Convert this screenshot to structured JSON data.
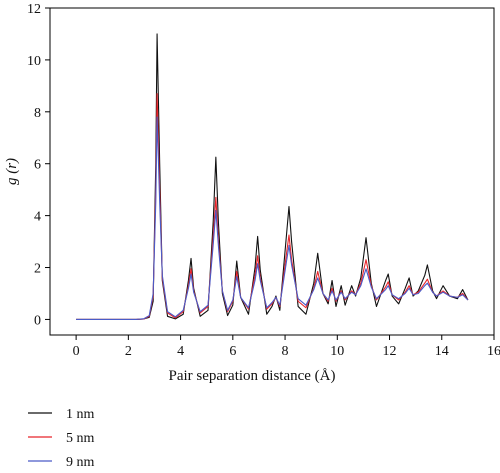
{
  "chart_data": {
    "type": "line",
    "xlabel": "Pair separation distance (Å)",
    "ylabel": "g (r)",
    "xlim": [
      -1,
      16
    ],
    "ylim": [
      -0.6,
      12
    ],
    "xticks": [
      0,
      2,
      4,
      6,
      8,
      10,
      12,
      14,
      16
    ],
    "yticks": [
      0,
      2,
      4,
      6,
      8,
      10,
      12
    ],
    "x_tick_labels": [
      "0",
      "2",
      "4",
      "6",
      "8",
      "10",
      "12",
      "14",
      "16"
    ],
    "y_tick_labels": [
      "0",
      "2",
      "4",
      "6",
      "8",
      "10",
      "12"
    ],
    "legend_position": "bottom-left",
    "grid": false,
    "series": [
      {
        "name": "1 nm",
        "color": "#111111",
        "points": [
          [
            0,
            0
          ],
          [
            2.3,
            0
          ],
          [
            2.6,
            0.02
          ],
          [
            2.8,
            0.08
          ],
          [
            2.95,
            0.7
          ],
          [
            3.05,
            6.0
          ],
          [
            3.1,
            11.0
          ],
          [
            3.2,
            6.0
          ],
          [
            3.3,
            1.5
          ],
          [
            3.5,
            0.12
          ],
          [
            3.8,
            0.02
          ],
          [
            4.1,
            0.2
          ],
          [
            4.3,
            1.5
          ],
          [
            4.4,
            2.35
          ],
          [
            4.5,
            1.2
          ],
          [
            4.75,
            0.12
          ],
          [
            5.05,
            0.35
          ],
          [
            5.25,
            3.8
          ],
          [
            5.35,
            6.25
          ],
          [
            5.45,
            3.7
          ],
          [
            5.6,
            1.0
          ],
          [
            5.8,
            0.15
          ],
          [
            6.0,
            0.55
          ],
          [
            6.15,
            2.25
          ],
          [
            6.3,
            0.85
          ],
          [
            6.6,
            0.2
          ],
          [
            6.85,
            2.0
          ],
          [
            6.95,
            3.2
          ],
          [
            7.05,
            1.9
          ],
          [
            7.3,
            0.2
          ],
          [
            7.5,
            0.5
          ],
          [
            7.65,
            0.9
          ],
          [
            7.8,
            0.35
          ],
          [
            8.05,
            3.2
          ],
          [
            8.15,
            4.35
          ],
          [
            8.25,
            3.0
          ],
          [
            8.5,
            0.5
          ],
          [
            8.8,
            0.2
          ],
          [
            9.1,
            1.4
          ],
          [
            9.25,
            2.55
          ],
          [
            9.45,
            1.0
          ],
          [
            9.65,
            0.6
          ],
          [
            9.8,
            1.5
          ],
          [
            9.95,
            0.5
          ],
          [
            10.15,
            1.3
          ],
          [
            10.3,
            0.55
          ],
          [
            10.55,
            1.3
          ],
          [
            10.7,
            0.9
          ],
          [
            10.9,
            1.6
          ],
          [
            11.1,
            3.15
          ],
          [
            11.3,
            1.4
          ],
          [
            11.5,
            0.5
          ],
          [
            11.85,
            1.5
          ],
          [
            11.95,
            1.75
          ],
          [
            12.1,
            0.9
          ],
          [
            12.35,
            0.6
          ],
          [
            12.6,
            1.2
          ],
          [
            12.75,
            1.6
          ],
          [
            12.9,
            0.9
          ],
          [
            13.1,
            1.1
          ],
          [
            13.35,
            1.7
          ],
          [
            13.45,
            2.1
          ],
          [
            13.65,
            1.1
          ],
          [
            13.8,
            0.8
          ],
          [
            14.05,
            1.3
          ],
          [
            14.3,
            0.9
          ],
          [
            14.6,
            0.8
          ],
          [
            14.8,
            1.15
          ],
          [
            15.0,
            0.75
          ]
        ]
      },
      {
        "name": "5 nm",
        "color": "#e8252b",
        "points": [
          [
            0,
            0
          ],
          [
            2.3,
            0
          ],
          [
            2.6,
            0.02
          ],
          [
            2.8,
            0.12
          ],
          [
            2.95,
            0.9
          ],
          [
            3.05,
            5.0
          ],
          [
            3.1,
            8.7
          ],
          [
            3.2,
            5.0
          ],
          [
            3.3,
            1.6
          ],
          [
            3.5,
            0.25
          ],
          [
            3.8,
            0.06
          ],
          [
            4.1,
            0.3
          ],
          [
            4.3,
            1.3
          ],
          [
            4.4,
            1.95
          ],
          [
            4.5,
            1.1
          ],
          [
            4.75,
            0.25
          ],
          [
            5.05,
            0.5
          ],
          [
            5.25,
            3.2
          ],
          [
            5.35,
            4.7
          ],
          [
            5.45,
            3.0
          ],
          [
            5.6,
            1.1
          ],
          [
            5.8,
            0.3
          ],
          [
            6.0,
            0.7
          ],
          [
            6.15,
            1.85
          ],
          [
            6.3,
            0.85
          ],
          [
            6.6,
            0.4
          ],
          [
            6.85,
            1.7
          ],
          [
            6.95,
            2.45
          ],
          [
            7.05,
            1.6
          ],
          [
            7.3,
            0.4
          ],
          [
            7.5,
            0.6
          ],
          [
            7.65,
            0.85
          ],
          [
            7.8,
            0.5
          ],
          [
            8.05,
            2.5
          ],
          [
            8.15,
            3.25
          ],
          [
            8.25,
            2.3
          ],
          [
            8.5,
            0.7
          ],
          [
            8.8,
            0.45
          ],
          [
            9.1,
            1.2
          ],
          [
            9.25,
            1.85
          ],
          [
            9.45,
            1.0
          ],
          [
            9.65,
            0.7
          ],
          [
            9.8,
            1.2
          ],
          [
            9.95,
            0.7
          ],
          [
            10.15,
            1.1
          ],
          [
            10.3,
            0.75
          ],
          [
            10.55,
            1.1
          ],
          [
            10.7,
            0.95
          ],
          [
            10.9,
            1.4
          ],
          [
            11.1,
            2.3
          ],
          [
            11.3,
            1.3
          ],
          [
            11.5,
            0.75
          ],
          [
            11.85,
            1.25
          ],
          [
            11.95,
            1.45
          ],
          [
            12.1,
            0.95
          ],
          [
            12.35,
            0.75
          ],
          [
            12.6,
            1.05
          ],
          [
            12.75,
            1.3
          ],
          [
            12.9,
            0.95
          ],
          [
            13.1,
            1.05
          ],
          [
            13.35,
            1.4
          ],
          [
            13.45,
            1.55
          ],
          [
            13.65,
            1.05
          ],
          [
            13.8,
            0.9
          ],
          [
            14.05,
            1.1
          ],
          [
            14.3,
            0.9
          ],
          [
            14.6,
            0.85
          ],
          [
            14.8,
            1.0
          ],
          [
            15.0,
            0.75
          ]
        ]
      },
      {
        "name": "9 nm",
        "color": "#4a5bc8",
        "points": [
          [
            0,
            0
          ],
          [
            2.3,
            0
          ],
          [
            2.6,
            0.03
          ],
          [
            2.8,
            0.15
          ],
          [
            2.95,
            1.0
          ],
          [
            3.05,
            4.5
          ],
          [
            3.1,
            7.8
          ],
          [
            3.2,
            4.5
          ],
          [
            3.3,
            1.7
          ],
          [
            3.5,
            0.3
          ],
          [
            3.8,
            0.1
          ],
          [
            4.1,
            0.35
          ],
          [
            4.3,
            1.2
          ],
          [
            4.4,
            1.75
          ],
          [
            4.5,
            1.05
          ],
          [
            4.75,
            0.3
          ],
          [
            5.05,
            0.55
          ],
          [
            5.25,
            2.9
          ],
          [
            5.35,
            4.2
          ],
          [
            5.45,
            2.8
          ],
          [
            5.6,
            1.1
          ],
          [
            5.8,
            0.35
          ],
          [
            6.0,
            0.75
          ],
          [
            6.15,
            1.65
          ],
          [
            6.3,
            0.85
          ],
          [
            6.6,
            0.45
          ],
          [
            6.85,
            1.5
          ],
          [
            6.95,
            2.15
          ],
          [
            7.05,
            1.5
          ],
          [
            7.3,
            0.45
          ],
          [
            7.5,
            0.65
          ],
          [
            7.65,
            0.85
          ],
          [
            7.8,
            0.55
          ],
          [
            8.05,
            2.2
          ],
          [
            8.15,
            2.85
          ],
          [
            8.25,
            2.1
          ],
          [
            8.5,
            0.8
          ],
          [
            8.8,
            0.55
          ],
          [
            9.1,
            1.15
          ],
          [
            9.25,
            1.6
          ],
          [
            9.45,
            1.0
          ],
          [
            9.65,
            0.75
          ],
          [
            9.8,
            1.1
          ],
          [
            9.95,
            0.75
          ],
          [
            10.15,
            1.05
          ],
          [
            10.3,
            0.8
          ],
          [
            10.55,
            1.05
          ],
          [
            10.7,
            0.95
          ],
          [
            10.9,
            1.3
          ],
          [
            11.1,
            1.95
          ],
          [
            11.3,
            1.25
          ],
          [
            11.5,
            0.8
          ],
          [
            11.85,
            1.15
          ],
          [
            11.95,
            1.3
          ],
          [
            12.1,
            0.95
          ],
          [
            12.35,
            0.8
          ],
          [
            12.6,
            1.0
          ],
          [
            12.75,
            1.2
          ],
          [
            12.9,
            0.95
          ],
          [
            13.1,
            1.0
          ],
          [
            13.35,
            1.3
          ],
          [
            13.45,
            1.4
          ],
          [
            13.65,
            1.05
          ],
          [
            13.8,
            0.9
          ],
          [
            14.05,
            1.05
          ],
          [
            14.3,
            0.9
          ],
          [
            14.6,
            0.85
          ],
          [
            14.8,
            0.95
          ],
          [
            15.0,
            0.75
          ]
        ]
      }
    ]
  }
}
